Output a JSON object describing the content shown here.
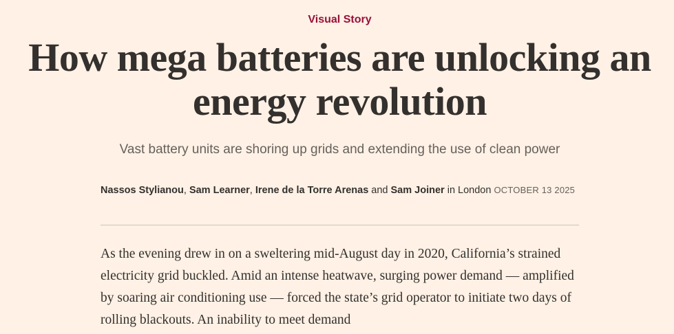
{
  "kicker": "Visual Story",
  "headline": "How mega batteries are unlocking an energy revolution",
  "standfirst": "Vast battery units are shoring up grids and extending the use of clean power",
  "byline": {
    "authors": [
      "Nassos Stylianou",
      "Sam Learner",
      "Irene de la Torre Arenas",
      "Sam Joiner"
    ],
    "sep_comma": ", ",
    "sep_and": " and ",
    "location": " in London ",
    "date": "October 13 2025"
  },
  "body": {
    "paragraph_1": "As the evening drew in on a sweltering mid-August day in 2020, California’s strained electricity grid buckled. Amid an intense heatwave, surging power demand — amplified by soaring air conditioning use — forced the state’s grid operator to initiate two days of rolling blackouts. An inability to meet demand"
  },
  "colors": {
    "background": "#fff1e5",
    "kicker": "#990f3d",
    "text": "#33302e",
    "muted": "#66605c",
    "rule": "#ccc1b7"
  }
}
